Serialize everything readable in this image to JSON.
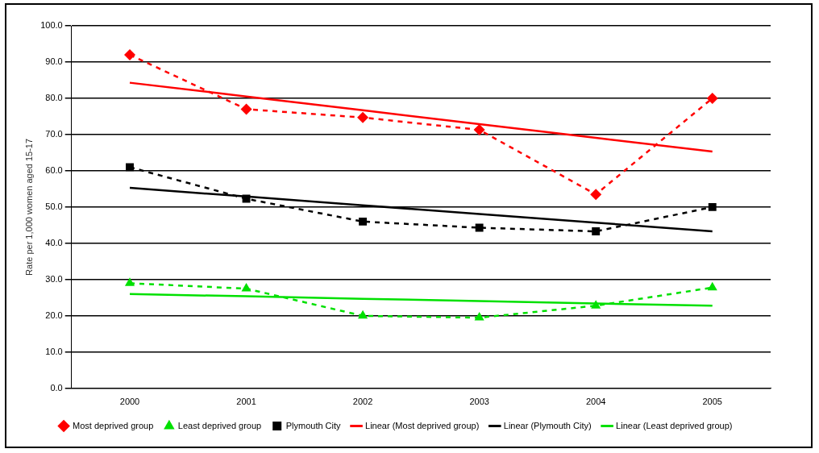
{
  "chart_data": {
    "type": "line",
    "ylabel": "Rate per 1,000 women aged 15-17",
    "categories": [
      "2000",
      "2001",
      "2002",
      "2003",
      "2004",
      "2005"
    ],
    "series": [
      {
        "name": "Most deprived group",
        "color": "#ff0000",
        "marker": "diamond",
        "line_style": "dashed",
        "values": [
          92.0,
          77.0,
          74.7,
          71.3,
          53.5,
          80.0
        ]
      },
      {
        "name": "Least deprived group",
        "color": "#00e000",
        "marker": "triangle",
        "line_style": "dashed",
        "values": [
          29.0,
          27.5,
          20.0,
          19.5,
          22.8,
          27.8
        ]
      },
      {
        "name": "Plymouth City",
        "color": "#000000",
        "marker": "square",
        "line_style": "dashed",
        "values": [
          61.0,
          52.3,
          46.0,
          44.3,
          43.3,
          50.0
        ]
      },
      {
        "name": "Linear (Most deprived group)",
        "color": "#ff0000",
        "marker": "none",
        "line_style": "solid",
        "values": [
          84.3,
          80.5,
          76.7,
          72.9,
          69.1,
          65.3
        ]
      },
      {
        "name": "Linear (Plymouth City)",
        "color": "#000000",
        "marker": "none",
        "line_style": "solid",
        "values": [
          55.3,
          52.9,
          50.5,
          48.1,
          45.7,
          43.3
        ]
      },
      {
        "name": "Linear (Least deprived group)",
        "color": "#00e000",
        "marker": "none",
        "line_style": "solid",
        "values": [
          26.0,
          25.4,
          24.7,
          24.1,
          23.4,
          22.8
        ]
      }
    ],
    "ylim": [
      0,
      100
    ],
    "yticks": [
      {
        "value": 0,
        "label": "0.0"
      },
      {
        "value": 10,
        "label": "10.0"
      },
      {
        "value": 20,
        "label": "20.0"
      },
      {
        "value": 30,
        "label": "30.0"
      },
      {
        "value": 40,
        "label": "40.0"
      },
      {
        "value": 50,
        "label": "50.0"
      },
      {
        "value": 60,
        "label": "60.0"
      },
      {
        "value": 70,
        "label": "70.0"
      },
      {
        "value": 80,
        "label": "80.0"
      },
      {
        "value": 90,
        "label": "90.0"
      },
      {
        "value": 100,
        "label": "100.0"
      }
    ],
    "grid": "y",
    "legend": "bottom"
  }
}
